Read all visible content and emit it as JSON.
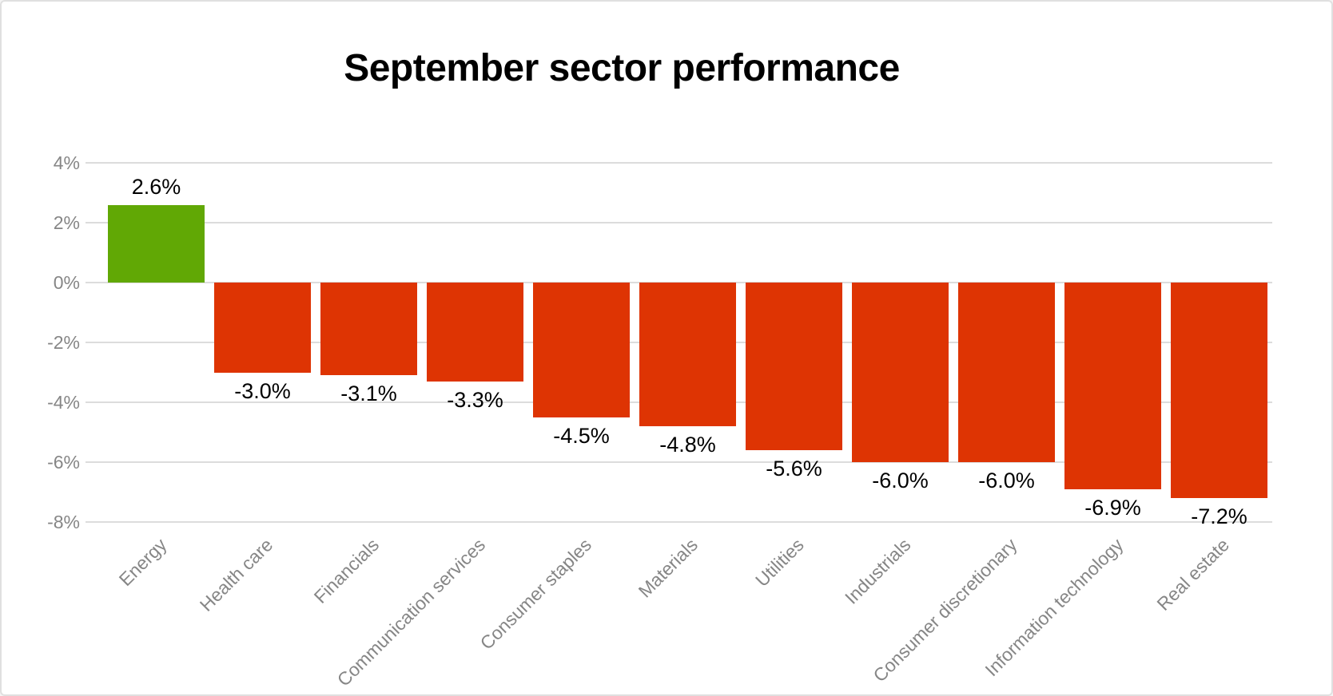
{
  "chart_data": {
    "type": "bar",
    "title": "September sector performance",
    "categories": [
      "Energy",
      "Health care",
      "Financials",
      "Communication services",
      "Consumer staples",
      "Materials",
      "Utilities",
      "Industrials",
      "Consumer discretionary",
      "Information technology",
      "Real estate"
    ],
    "values": [
      2.6,
      -3.0,
      -3.1,
      -3.3,
      -4.5,
      -4.8,
      -5.6,
      -6.0,
      -6.0,
      -6.9,
      -7.2
    ],
    "value_labels": [
      "2.6%",
      "-3.0%",
      "-3.1%",
      "-3.3%",
      "-4.5%",
      "-4.8%",
      "-5.6%",
      "-6.0%",
      "-6.0%",
      "-6.9%",
      "-7.2%"
    ],
    "xlabel": "",
    "ylabel": "",
    "ylim": [
      -8,
      4
    ],
    "yticks": [
      {
        "value": 4,
        "label": "4%"
      },
      {
        "value": 2,
        "label": "2%"
      },
      {
        "value": 0,
        "label": "0%"
      },
      {
        "value": -2,
        "label": "-2%"
      },
      {
        "value": -4,
        "label": "-4%"
      },
      {
        "value": -6,
        "label": "-6%"
      },
      {
        "value": -8,
        "label": "-8%"
      }
    ],
    "grid": "horizontal gridlines on",
    "legend_position": "none",
    "colors": {
      "positive_bar": "#61A805",
      "negative_bar": "#DE3403",
      "gridline": "#DCDCDC",
      "axis_text": "#868686",
      "value_label_text": "#000000",
      "title_text": "#000000",
      "background": "#FFFFFF",
      "card_border": "#E0E0E0"
    }
  }
}
